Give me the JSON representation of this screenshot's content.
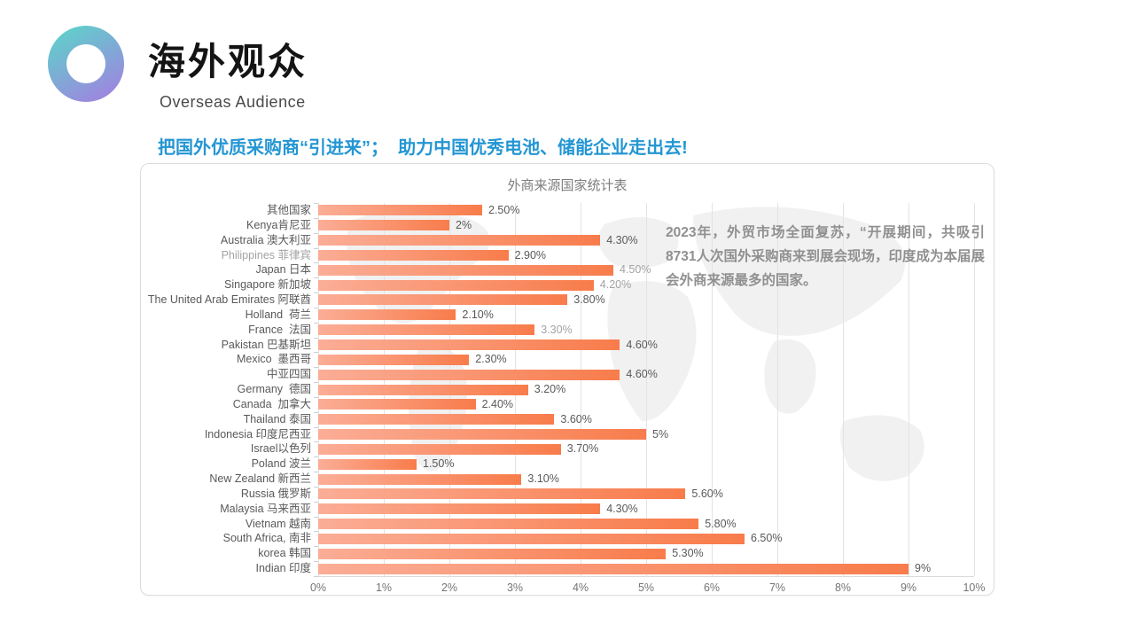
{
  "slide": {
    "title": "海外观众",
    "subtitle": "Overseas Audience",
    "headline": "把国外优质采购商“引进来”；  助力中国优秀电池、储能企业走出去!",
    "annotation": "2023年，外贸市场全面复苏，“开展期间，共吸引8731人次国外采购商来到展会现场，印度成为本届展会外商来源最多的国家。"
  },
  "colors": {
    "accent_blue": "#2496D3",
    "bar_gradient_start": "#FBAD96",
    "bar_gradient_end": "#F87C4B",
    "logo_teal": "#58D8C9",
    "logo_purple": "#A77BE2",
    "label_gray": "#595959",
    "muted_gray": "#A3A3A3",
    "grid_gray": "#E3E3E3"
  },
  "chart_data": {
    "type": "bar",
    "orientation": "horizontal",
    "title": "外商来源国家统计表",
    "categories": [
      "其他国家",
      "Kenya肯尼亚",
      "Australia 澳大利亚",
      "Philippines 菲律宾",
      "Japan 日本",
      "Singapore 新加坡",
      "The United Arab Emirates 阿联酋",
      "Holland  荷兰",
      "France  法国",
      "Pakistan 巴基斯坦",
      "Mexico  墨西哥",
      "中亚四国",
      "Germany  德国",
      "Canada  加拿大",
      "Thailand 泰国",
      "Indonesia 印度尼西亚",
      "Israel以色列",
      "Poland 波兰",
      "New Zealand 新西兰",
      "Russia 俄罗斯",
      "Malaysia 马来西亚",
      "Vietnam 越南",
      "South Africa, 南非",
      "korea 韩国",
      "Indian 印度"
    ],
    "values": [
      2.5,
      2,
      4.3,
      2.9,
      4.5,
      4.2,
      3.8,
      2.1,
      3.3,
      4.6,
      2.3,
      4.6,
      3.2,
      2.4,
      3.6,
      5,
      3.7,
      1.5,
      3.1,
      5.6,
      4.3,
      5.8,
      6.5,
      5.3,
      9
    ],
    "display_labels": [
      "2.50%",
      "2%",
      "4.30%",
      "2.90%",
      "4.50%",
      "4.20%",
      "3.80%",
      "2.10%",
      "3.30%",
      "4.60%",
      "2.30%",
      "4.60%",
      "3.20%",
      "2.40%",
      "3.60%",
      "5%",
      "3.70%",
      "1.50%",
      "3.10%",
      "5.60%",
      "4.30%",
      "5.80%",
      "6.50%",
      "5.30%",
      "9%"
    ],
    "muted_value_indices": [
      4,
      5,
      8
    ],
    "muted_label_indices": [
      3
    ],
    "x_ticks": [
      "0%",
      "1%",
      "2%",
      "3%",
      "4%",
      "5%",
      "6%",
      "7%",
      "8%",
      "9%",
      "10%"
    ],
    "xlabel": "",
    "ylabel": "",
    "xlim": [
      0,
      10
    ],
    "grid": true,
    "legend": false
  }
}
